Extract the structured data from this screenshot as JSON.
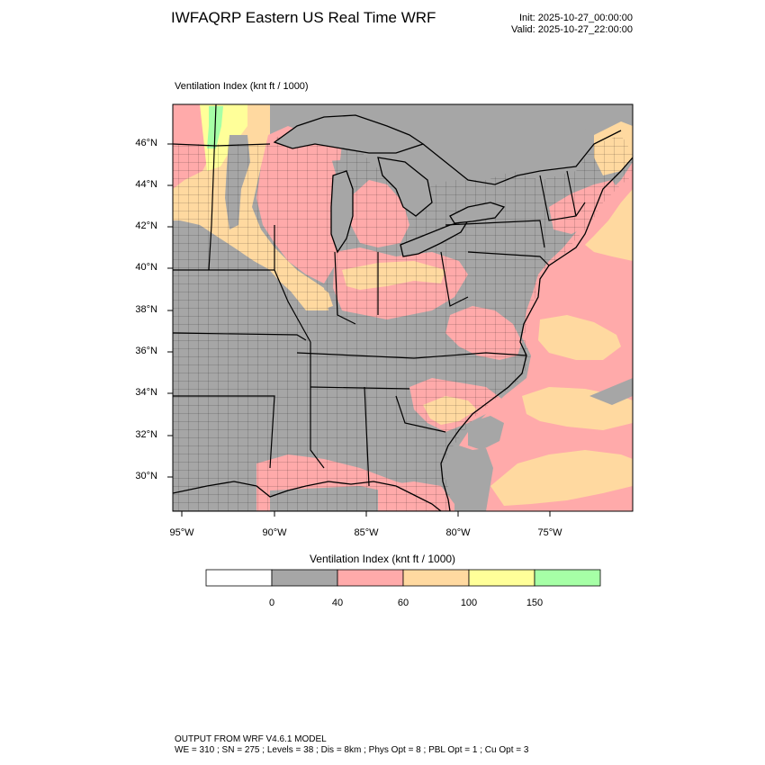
{
  "header": {
    "title": "IWFAQRP Eastern US Real Time WRF",
    "init": "Init: 2025-10-27_00:00:00",
    "valid": "Valid: 2025-10-27_22:00:00"
  },
  "field": {
    "title": "Ventilation Index   (knt ft / 1000)"
  },
  "axes": {
    "lat_ticks": [
      "46°N",
      "44°N",
      "42°N",
      "40°N",
      "38°N",
      "36°N",
      "34°N",
      "32°N",
      "30°N"
    ],
    "lon_ticks": [
      "95°W",
      "90°W",
      "85°W",
      "80°W",
      "75°W"
    ]
  },
  "legend": {
    "title": "Ventilation Index  (knt ft / 1000)",
    "colors": [
      "#ffffff",
      "#a6a6a6",
      "#ffaaaa",
      "#ffd9a0",
      "#ffff99",
      "#a6ffa6"
    ],
    "labels": [
      "0",
      "40",
      "60",
      "100",
      "150"
    ]
  },
  "footer": {
    "line1": "OUTPUT FROM WRF V4.6.1 MODEL",
    "line2": "WE = 310 ; SN = 275 ; Levels = 38 ; Dis = 8km ; Phys Opt = 8 ; PBL Opt = 1 ; Cu Opt = 3"
  },
  "map": {
    "land_color": "#a6a6a6",
    "water_color": "#a6a6a6",
    "class_colors": {
      "low": "#a6a6a6",
      "moderate": "#ffaaaa",
      "good": "#ffd9a0",
      "very_good": "#ffff99",
      "excellent": "#a6ffa6"
    }
  }
}
